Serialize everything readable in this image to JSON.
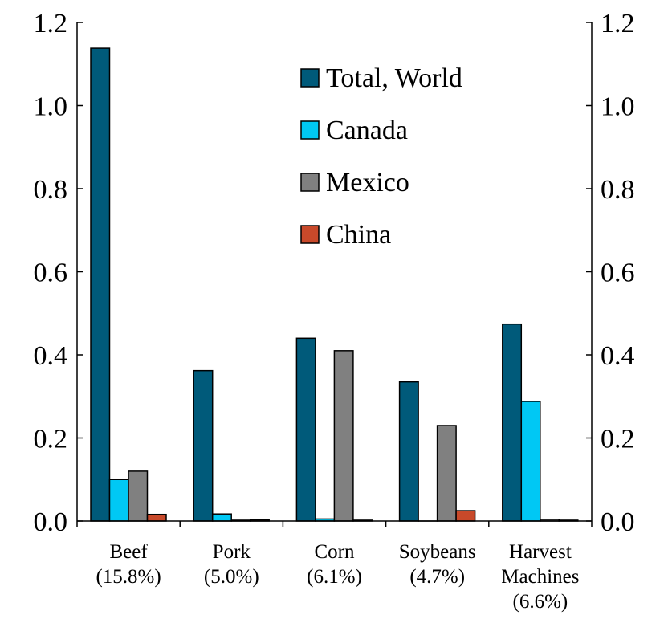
{
  "chart_data": {
    "type": "bar",
    "categories": [
      [
        "Beef",
        "(15.8%)"
      ],
      [
        "Pork",
        "(5.0%)"
      ],
      [
        "Corn",
        "(6.1%)"
      ],
      [
        "Soybeans",
        "(4.7%)"
      ],
      [
        "Harvest",
        "Machines",
        "(6.6%)"
      ]
    ],
    "series": [
      {
        "name": "Total, World",
        "color": "#005A7A",
        "values": [
          1.138,
          0.362,
          0.44,
          0.335,
          0.474
        ]
      },
      {
        "name": "Canada",
        "color": "#00C8F4",
        "values": [
          0.1,
          0.017,
          0.005,
          0.0,
          0.288
        ]
      },
      {
        "name": "Mexico",
        "color": "#808080",
        "values": [
          0.12,
          0.002,
          0.41,
          0.23,
          0.004
        ]
      },
      {
        "name": "China",
        "color": "#C8492A",
        "values": [
          0.016,
          0.003,
          0.002,
          0.025,
          0.002
        ]
      }
    ],
    "ylim": [
      0,
      1.2
    ],
    "yticks": [
      "0.0",
      "0.2",
      "0.4",
      "0.6",
      "0.8",
      "1.0",
      "1.2"
    ],
    "ytick_values": [
      0,
      0.2,
      0.4,
      0.6,
      0.8,
      1.0,
      1.2
    ],
    "right_axis": true,
    "grid": false,
    "legend_position": "top-right"
  }
}
